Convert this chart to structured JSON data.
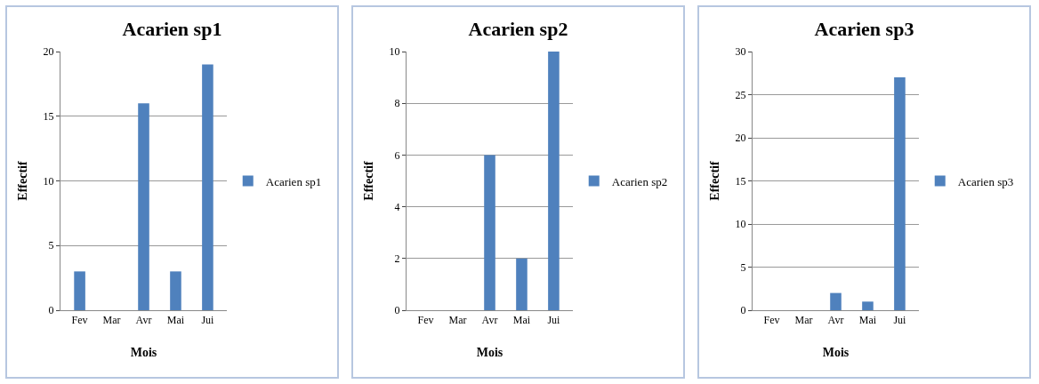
{
  "chart_data": [
    {
      "type": "bar",
      "title": "Acarien sp1",
      "xlabel": "Mois",
      "ylabel": "Effectif",
      "categories": [
        "Fev",
        "Mar",
        "Avr",
        "Mai",
        "Jui"
      ],
      "series": [
        {
          "name": "Acarien sp1",
          "color": "#4f81bd",
          "values": [
            3,
            0,
            16,
            3,
            19
          ]
        }
      ],
      "ylim": [
        0,
        20
      ],
      "yticks": [
        0,
        5,
        10,
        15,
        20
      ],
      "grid": "y",
      "legend": "right"
    },
    {
      "type": "bar",
      "title": "Acarien sp2",
      "xlabel": "Mois",
      "ylabel": "Effectif",
      "categories": [
        "Fev",
        "Mar",
        "Avr",
        "Mai",
        "Jui"
      ],
      "series": [
        {
          "name": "Acarien sp2",
          "color": "#4f81bd",
          "values": [
            0,
            0,
            6,
            2,
            10
          ]
        }
      ],
      "ylim": [
        0,
        10
      ],
      "yticks": [
        0,
        2,
        4,
        6,
        8,
        10
      ],
      "grid": "y",
      "legend": "right"
    },
    {
      "type": "bar",
      "title": "Acarien sp3",
      "xlabel": "Mois",
      "ylabel": "Effectif",
      "categories": [
        "Fev",
        "Mar",
        "Avr",
        "Mai",
        "Jui"
      ],
      "series": [
        {
          "name": "Acarien sp3",
          "color": "#4f81bd",
          "values": [
            0,
            0,
            2,
            1,
            27
          ]
        }
      ],
      "ylim": [
        0,
        30
      ],
      "yticks": [
        0,
        5,
        10,
        15,
        20,
        25,
        30
      ],
      "grid": "y",
      "legend": "right"
    }
  ]
}
